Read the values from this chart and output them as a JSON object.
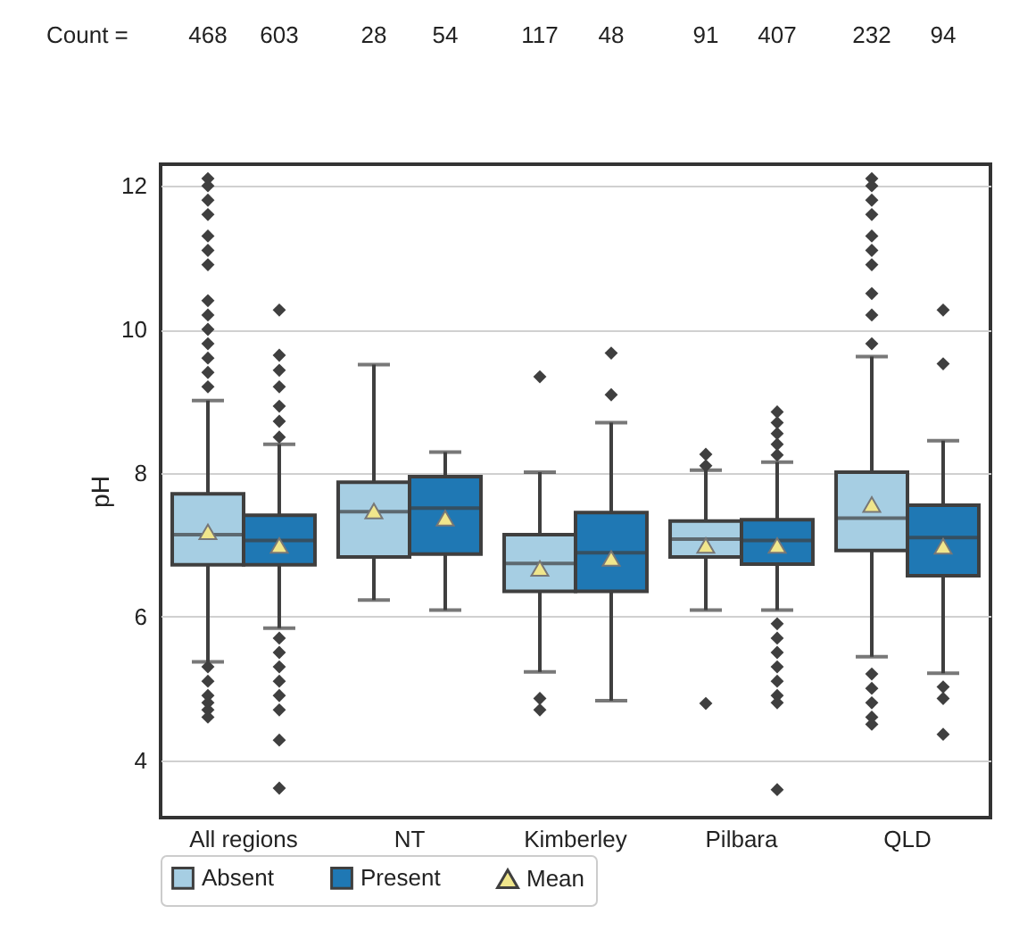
{
  "chart_data": {
    "type": "box",
    "ylabel": "pH",
    "categories": [
      "All regions",
      "NT",
      "Kimberley",
      "Pilbara",
      "QLD"
    ],
    "ylim": [
      3.2,
      12.3
    ],
    "yticks": [
      4,
      6,
      8,
      10,
      12
    ],
    "grid": "y",
    "legend": "bottom",
    "annotations": [
      "Count =",
      "468",
      "603",
      "28",
      "54",
      "117",
      "48",
      "91",
      "407",
      "232",
      "94"
    ],
    "series": [
      {
        "name": "Absent",
        "color": "#a6cee3",
        "boxes": [
          {
            "low": 5.37,
            "q1": 6.72,
            "median": 7.14,
            "q3": 7.71,
            "high": 9.01,
            "outliers": [
              12.1,
              12.0,
              11.8,
              11.6,
              11.3,
              11.1,
              10.9,
              10.4,
              10.2,
              10.0,
              9.8,
              9.6,
              9.4,
              9.2,
              5.3,
              5.1,
              4.9,
              4.8,
              4.7,
              4.6
            ]
          },
          {
            "low": 6.23,
            "q1": 6.83,
            "median": 7.46,
            "q3": 7.87,
            "high": 9.51
          },
          {
            "low": 5.23,
            "q1": 6.35,
            "median": 6.74,
            "q3": 7.14,
            "high": 8.01,
            "outliers": [
              9.34,
              4.86,
              4.7
            ]
          },
          {
            "low": 6.09,
            "q1": 6.83,
            "median": 7.08,
            "q3": 7.33,
            "high": 8.04,
            "outliers": [
              8.26,
              8.1,
              4.79
            ]
          },
          {
            "low": 5.44,
            "q1": 6.92,
            "median": 7.37,
            "q3": 8.01,
            "high": 9.62,
            "outliers": [
              12.1,
              12.0,
              11.8,
              11.6,
              11.3,
              11.1,
              10.9,
              10.5,
              10.2,
              9.8,
              5.2,
              5.0,
              4.8,
              4.6,
              4.5
            ]
          }
        ]
      },
      {
        "name": "Present",
        "color": "#1f78b4",
        "boxes": [
          {
            "low": 5.84,
            "q1": 6.72,
            "median": 7.06,
            "q3": 7.41,
            "high": 8.4,
            "outliers": [
              10.27,
              9.64,
              9.43,
              9.2,
              8.93,
              8.72,
              8.5,
              5.7,
              5.5,
              5.3,
              5.1,
              4.9,
              4.7,
              4.28,
              3.61
            ]
          },
          {
            "low": 6.09,
            "q1": 6.87,
            "median": 7.51,
            "q3": 7.95,
            "high": 8.29
          },
          {
            "low": 4.83,
            "q1": 6.35,
            "median": 6.89,
            "q3": 7.45,
            "high": 8.7,
            "outliers": [
              9.67,
              9.09
            ]
          },
          {
            "low": 6.09,
            "q1": 6.73,
            "median": 7.06,
            "q3": 7.35,
            "high": 8.15,
            "outliers": [
              8.85,
              8.7,
              8.55,
              8.4,
              8.25,
              5.9,
              5.7,
              5.5,
              5.3,
              5.1,
              4.9,
              4.8,
              3.59
            ]
          },
          {
            "low": 5.21,
            "q1": 6.57,
            "median": 7.1,
            "q3": 7.55,
            "high": 8.45,
            "outliers": [
              10.27,
              9.52,
              5.02,
              4.86,
              4.36
            ]
          }
        ]
      },
      {
        "name": "Mean",
        "type": "scatter",
        "marker": "triangle",
        "color": "#f0e68c",
        "x": [
          "All regions",
          "All regions",
          "NT",
          "NT",
          "Kimberley",
          "Kimberley",
          "Pilbara",
          "Pilbara",
          "QLD",
          "QLD"
        ],
        "values": [
          7.18,
          6.99,
          7.47,
          7.37,
          6.67,
          6.81,
          6.99,
          6.99,
          7.56,
          6.98
        ]
      }
    ]
  }
}
